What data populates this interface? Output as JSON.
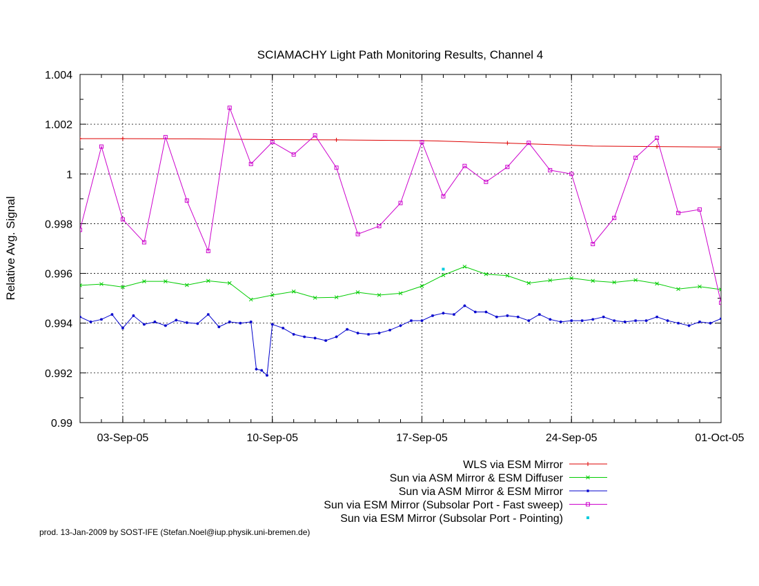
{
  "chart_data": {
    "type": "line",
    "title": "SCIAMACHY Light Path Monitoring Results, Channel 4",
    "xlabel": "",
    "ylabel": "Relative Avg. Signal",
    "xlim": [
      "2005-09-01",
      "2005-10-01"
    ],
    "ylim": [
      0.99,
      1.004
    ],
    "grid": true,
    "legend_position": "bottom-right",
    "x_ticks": [
      {
        "date": "2005-09-03",
        "label": "03-Sep-05"
      },
      {
        "date": "2005-09-10",
        "label": "10-Sep-05"
      },
      {
        "date": "2005-09-17",
        "label": "17-Sep-05"
      },
      {
        "date": "2005-09-24",
        "label": "24-Sep-05"
      },
      {
        "date": "2005-10-01",
        "label": "01-Oct-05"
      }
    ],
    "y_ticks": [
      {
        "value": 0.99,
        "label": "0.99"
      },
      {
        "value": 0.992,
        "label": "0.992"
      },
      {
        "value": 0.994,
        "label": "0.994"
      },
      {
        "value": 0.996,
        "label": "0.996"
      },
      {
        "value": 0.998,
        "label": "0.998"
      },
      {
        "value": 1.0,
        "label": "1"
      },
      {
        "value": 1.002,
        "label": "1.002"
      },
      {
        "value": 1.004,
        "label": "1.004"
      }
    ],
    "series": [
      {
        "name": "WLS via ESM Mirror",
        "color": "#dd0000",
        "marker": "plus",
        "x": [
          "2005-09-01",
          "2005-09-03",
          "2005-09-06",
          "2005-09-10",
          "2005-09-13",
          "2005-09-17",
          "2005-09-18",
          "2005-09-21",
          "2005-09-24",
          "2005-09-25",
          "2005-09-28",
          "2005-10-01"
        ],
        "y": [
          1.00142,
          1.00142,
          1.00141,
          1.00138,
          1.00137,
          1.00134,
          1.00132,
          1.00124,
          1.00115,
          1.00112,
          1.0011,
          1.00108
        ]
      },
      {
        "name": "Sun via ASM Mirror & ESM Diffuser",
        "color": "#00cc00",
        "marker": "x",
        "x": [
          "2005-09-01",
          "2005-09-02",
          "2005-09-03",
          "2005-09-04",
          "2005-09-05",
          "2005-09-06",
          "2005-09-07",
          "2005-09-08",
          "2005-09-09",
          "2005-09-10",
          "2005-09-11",
          "2005-09-12",
          "2005-09-13",
          "2005-09-14",
          "2005-09-15",
          "2005-09-16",
          "2005-09-17",
          "2005-09-18",
          "2005-09-19",
          "2005-09-20",
          "2005-09-21",
          "2005-09-22",
          "2005-09-23",
          "2005-09-24",
          "2005-09-25",
          "2005-09-26",
          "2005-09-27",
          "2005-09-28",
          "2005-09-29",
          "2005-09-30",
          "2005-10-01"
        ],
        "y": [
          0.99552,
          0.99557,
          0.99545,
          0.99568,
          0.99568,
          0.99553,
          0.9957,
          0.99561,
          0.99495,
          0.99513,
          0.99527,
          0.99502,
          0.99504,
          0.99524,
          0.99513,
          0.9952,
          0.99549,
          0.99593,
          0.99627,
          0.99597,
          0.99591,
          0.99561,
          0.99572,
          0.99581,
          0.9957,
          0.99564,
          0.99573,
          0.99559,
          0.99537,
          0.99547,
          0.99535
        ]
      },
      {
        "name": "Sun via ASM Mirror & ESM Mirror",
        "color": "#0000cc",
        "marker": "star",
        "x": [
          "2005-09-01",
          "2005-09-01 12:00",
          "2005-09-02",
          "2005-09-02 12:00",
          "2005-09-03",
          "2005-09-03 12:00",
          "2005-09-04",
          "2005-09-04 12:00",
          "2005-09-05",
          "2005-09-05 12:00",
          "2005-09-06",
          "2005-09-06 12:00",
          "2005-09-07",
          "2005-09-07 12:00",
          "2005-09-08",
          "2005-09-08 12:00",
          "2005-09-09",
          "2005-09-09 06:00",
          "2005-09-09 12:00",
          "2005-09-09 18:00",
          "2005-09-10",
          "2005-09-10 12:00",
          "2005-09-11",
          "2005-09-11 12:00",
          "2005-09-12",
          "2005-09-12 12:00",
          "2005-09-13",
          "2005-09-13 12:00",
          "2005-09-14",
          "2005-09-14 12:00",
          "2005-09-15",
          "2005-09-15 12:00",
          "2005-09-16",
          "2005-09-16 12:00",
          "2005-09-17",
          "2005-09-17 12:00",
          "2005-09-18",
          "2005-09-18 12:00",
          "2005-09-19",
          "2005-09-19 12:00",
          "2005-09-20",
          "2005-09-20 12:00",
          "2005-09-21",
          "2005-09-21 12:00",
          "2005-09-22",
          "2005-09-22 12:00",
          "2005-09-23",
          "2005-09-23 12:00",
          "2005-09-24",
          "2005-09-24 12:00",
          "2005-09-25",
          "2005-09-25 12:00",
          "2005-09-26",
          "2005-09-26 12:00",
          "2005-09-27",
          "2005-09-27 12:00",
          "2005-09-28",
          "2005-09-28 12:00",
          "2005-09-29",
          "2005-09-29 12:00",
          "2005-09-30",
          "2005-09-30 12:00",
          "2005-10-01"
        ],
        "y": [
          0.99425,
          0.99405,
          0.99415,
          0.99435,
          0.9938,
          0.9943,
          0.99395,
          0.99405,
          0.9939,
          0.99412,
          0.99402,
          0.99398,
          0.99435,
          0.99385,
          0.99405,
          0.994,
          0.99405,
          0.99215,
          0.9921,
          0.9919,
          0.99395,
          0.9938,
          0.99355,
          0.99345,
          0.9934,
          0.9933,
          0.99345,
          0.99375,
          0.9936,
          0.99355,
          0.9936,
          0.99372,
          0.9939,
          0.9941,
          0.9941,
          0.9943,
          0.9944,
          0.99435,
          0.9947,
          0.99445,
          0.99445,
          0.99425,
          0.9943,
          0.99425,
          0.9941,
          0.99435,
          0.99415,
          0.99405,
          0.9941,
          0.9941,
          0.99415,
          0.99425,
          0.9941,
          0.99405,
          0.9941,
          0.9941,
          0.99425,
          0.9941,
          0.994,
          0.9939,
          0.99405,
          0.994,
          0.99418
        ]
      },
      {
        "name": "Sun via ESM Mirror (Subsolar Port - Fast sweep)",
        "color": "#cc00cc",
        "marker": "square",
        "x": [
          "2005-09-01",
          "2005-09-02",
          "2005-09-03",
          "2005-09-04",
          "2005-09-05",
          "2005-09-06",
          "2005-09-07",
          "2005-09-08",
          "2005-09-09",
          "2005-09-10",
          "2005-09-11",
          "2005-09-12",
          "2005-09-13",
          "2005-09-14",
          "2005-09-15",
          "2005-09-16",
          "2005-09-17",
          "2005-09-18",
          "2005-09-19",
          "2005-09-20",
          "2005-09-21",
          "2005-09-22",
          "2005-09-23",
          "2005-09-24",
          "2005-09-25",
          "2005-09-26",
          "2005-09-27",
          "2005-09-28",
          "2005-09-29",
          "2005-09-30",
          "2005-10-01"
        ],
        "y": [
          0.99775,
          1.0011,
          0.99817,
          0.99725,
          1.00148,
          0.99893,
          0.9969,
          1.00266,
          1.0004,
          1.00128,
          1.00078,
          1.00155,
          1.00025,
          0.99758,
          0.9979,
          0.99883,
          1.00128,
          0.9991,
          1.00032,
          0.99968,
          1.00028,
          1.00125,
          1.00015,
          1.0,
          0.99718,
          0.99823,
          1.00065,
          1.00145,
          0.99843,
          0.99857,
          0.99482
        ]
      },
      {
        "name": "Sun via ESM Mirror (Subsolar Port - Pointing)",
        "color": "#00ccdd",
        "marker": "dot",
        "x": [
          "2005-09-18"
        ],
        "y": [
          0.99617
        ]
      }
    ],
    "annotations": [
      "prod. 13-Jan-2009 by SOST-IFE (Stefan.Noel@iup.physik.uni-bremen.de)"
    ]
  }
}
